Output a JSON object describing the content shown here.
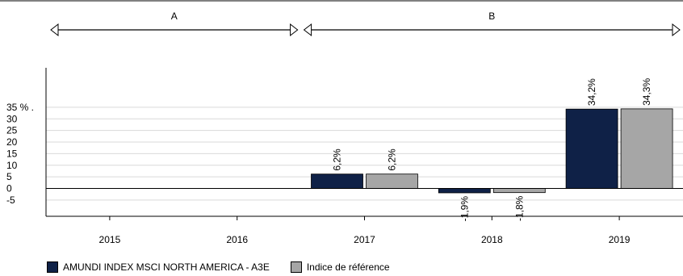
{
  "chart_data": {
    "type": "bar",
    "periods": [
      {
        "label": "A",
        "from": "2015",
        "to": "2016"
      },
      {
        "label": "B",
        "from": "2017",
        "to": "2019"
      }
    ],
    "categories": [
      "2015",
      "2016",
      "2017",
      "2018",
      "2019"
    ],
    "series": [
      {
        "name": "AMUNDI INDEX MSCI NORTH AMERICA - A3E",
        "color": "#0f2147",
        "values": [
          null,
          null,
          6.2,
          -1.9,
          34.2
        ],
        "labels": [
          "",
          "",
          "6,2%",
          "-1,9%",
          "34,2%"
        ]
      },
      {
        "name": "Indice de référence",
        "color": "#a6a6a6",
        "values": [
          null,
          null,
          6.2,
          -1.8,
          34.3
        ],
        "labels": [
          "",
          "",
          "6,2%",
          "-1,8%",
          "34,3%"
        ]
      }
    ],
    "y_ticks": [
      {
        "value": 35,
        "label": "35 % ."
      },
      {
        "value": 30,
        "label": "30"
      },
      {
        "value": 25,
        "label": "25"
      },
      {
        "value": 20,
        "label": "20"
      },
      {
        "value": 15,
        "label": "15"
      },
      {
        "value": 10,
        "label": "10"
      },
      {
        "value": 5,
        "label": "5"
      },
      {
        "value": 0,
        "label": "0"
      },
      {
        "value": -5,
        "label": "-5"
      }
    ],
    "ylim": [
      -12,
      52
    ],
    "grid": true,
    "legend_position": "bottom-left"
  }
}
